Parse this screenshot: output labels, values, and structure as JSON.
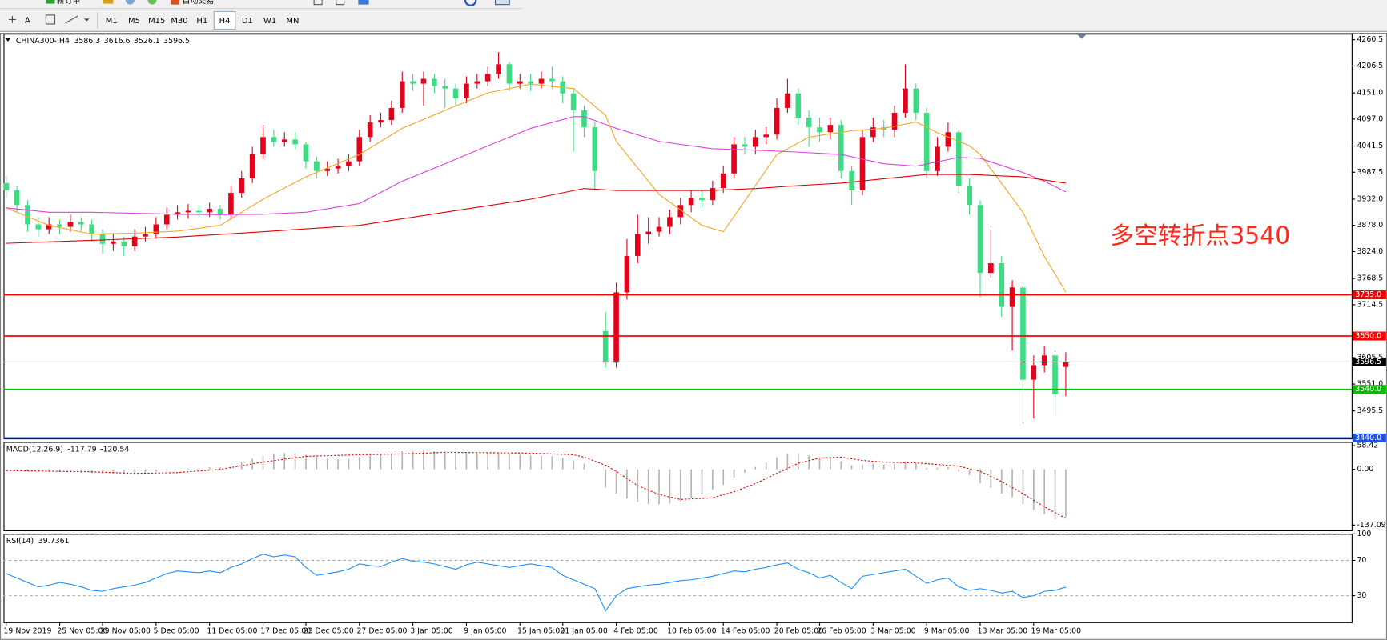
{
  "toolbar": {
    "buttons": [
      "新订单",
      "自动交易"
    ],
    "tools": [
      "A"
    ],
    "timeframes": [
      "M1",
      "M5",
      "M15",
      "M30",
      "H1",
      "H4",
      "D1",
      "W1",
      "MN"
    ],
    "active_index": 5
  },
  "chart_data": [
    {
      "type": "candlestick",
      "title": "CHINA300-,H4",
      "header_values": [
        3586.3,
        3616.6,
        3526.1,
        3596.5
      ],
      "annotation": "多空转折点3540",
      "annotation_color": "#ff2a1a",
      "up_color": "#e5001b",
      "down_color": "#3ddc84",
      "categories": [
        "19 Nov 2019",
        null,
        null,
        null,
        null,
        "25 Nov 05:00",
        null,
        null,
        null,
        "29 Nov 05:00",
        null,
        null,
        null,
        null,
        "5 Dec 05:00",
        null,
        null,
        null,
        null,
        "11 Dec 05:00",
        null,
        null,
        null,
        null,
        "17 Dec 05:00",
        null,
        null,
        null,
        "23 Dec 05:00",
        null,
        null,
        null,
        null,
        "27 Dec 05:00",
        null,
        null,
        null,
        null,
        "3 Jan 05:00",
        null,
        null,
        null,
        null,
        "9 Jan 05:00",
        null,
        null,
        null,
        null,
        "15 Jan 05:00",
        null,
        null,
        null,
        "21 Jan 05:00",
        null,
        null,
        null,
        null,
        "4 Feb 05:00",
        null,
        null,
        null,
        null,
        "10 Feb 05:00",
        null,
        null,
        null,
        null,
        "14 Feb 05:00",
        null,
        null,
        null,
        null,
        "20 Feb 05:00",
        null,
        null,
        null,
        "26 Feb 05:00",
        null,
        null,
        null,
        null,
        "3 Mar 05:00",
        null,
        null,
        null,
        null,
        "9 Mar 05:00",
        null,
        null,
        null,
        null,
        "13 Mar 05:00",
        null,
        null,
        null,
        null,
        "19 Mar 05:00",
        null,
        null,
        null
      ],
      "open": [
        3965,
        3950,
        3920,
        3880,
        3870,
        3880,
        3875,
        3885,
        3880,
        3860,
        3840,
        3845,
        3835,
        3855,
        3860,
        3880,
        3900,
        3905,
        3908,
        3905,
        3912,
        3900,
        3945,
        3975,
        4025,
        4060,
        4050,
        4055,
        4045,
        4010,
        3990,
        3995,
        4000,
        4010,
        4060,
        4090,
        4095,
        4120,
        4175,
        4170,
        4180,
        4165,
        4160,
        4140,
        4170,
        4175,
        4190,
        4210,
        4170,
        4175,
        4170,
        4180,
        4175,
        4150,
        4115,
        4080,
        3660,
        3595,
        3740,
        3815,
        3860,
        3865,
        3875,
        3895,
        3920,
        3935,
        3930,
        3955,
        3985,
        4045,
        4040,
        4060,
        4065,
        4120,
        4150,
        4100,
        4080,
        4070,
        4085,
        3990,
        3950,
        4060,
        4080,
        4075,
        4110,
        4160,
        4110,
        3990,
        4040,
        4070,
        3960,
        3920,
        3780,
        3800,
        3710,
        3750,
        3560,
        3590,
        3610,
        3586.3
      ],
      "high": [
        3980,
        3960,
        3930,
        3895,
        3895,
        3890,
        3900,
        3895,
        3890,
        3870,
        3860,
        3855,
        3870,
        3875,
        3895,
        3915,
        3920,
        3922,
        3920,
        3925,
        3920,
        3960,
        3990,
        4040,
        4085,
        4075,
        4070,
        4070,
        4050,
        4020,
        4010,
        4015,
        4025,
        4075,
        4105,
        4110,
        4135,
        4195,
        4190,
        4195,
        4190,
        4180,
        4170,
        4185,
        4190,
        4205,
        4235,
        4215,
        4190,
        4190,
        4195,
        4205,
        4185,
        4160,
        4125,
        4090,
        3700,
        3760,
        3850,
        3900,
        3895,
        3895,
        3910,
        3935,
        3950,
        3950,
        3970,
        4000,
        4060,
        4060,
        4075,
        4080,
        4140,
        4180,
        4160,
        4115,
        4100,
        4100,
        4095,
        4000,
        4075,
        4100,
        4095,
        4125,
        4210,
        4170,
        4120,
        4060,
        4090,
        4075,
        3975,
        3930,
        3870,
        3815,
        3765,
        3760,
        3610,
        3630,
        3620,
        3616.6
      ],
      "low": [
        3935,
        3905,
        3865,
        3855,
        3860,
        3860,
        3865,
        3865,
        3845,
        3820,
        3825,
        3815,
        3825,
        3845,
        3850,
        3870,
        3890,
        3892,
        3895,
        3895,
        3890,
        3890,
        3935,
        3965,
        4015,
        4040,
        4040,
        4035,
        3995,
        3975,
        3980,
        3985,
        3990,
        4000,
        4050,
        4080,
        4085,
        4110,
        4155,
        4125,
        4150,
        4120,
        4125,
        4130,
        4160,
        4165,
        4180,
        4155,
        4160,
        4155,
        4160,
        4160,
        4130,
        4030,
        4060,
        3950,
        3585,
        3585,
        3725,
        3800,
        3840,
        3855,
        3860,
        3880,
        3905,
        3915,
        3920,
        3945,
        3975,
        4025,
        4025,
        4045,
        4055,
        4110,
        4085,
        4040,
        4050,
        4055,
        3975,
        3920,
        3940,
        4050,
        4060,
        4060,
        4100,
        4095,
        3975,
        3980,
        4030,
        3945,
        3900,
        3730,
        3770,
        3690,
        3620,
        3470,
        3480,
        3575,
        3485,
        3526.1
      ],
      "close": [
        3950,
        3920,
        3880,
        3870,
        3880,
        3875,
        3885,
        3880,
        3860,
        3840,
        3845,
        3835,
        3855,
        3860,
        3880,
        3900,
        3905,
        3908,
        3905,
        3912,
        3900,
        3945,
        3975,
        4025,
        4060,
        4050,
        4055,
        4045,
        4010,
        3990,
        3995,
        4000,
        4010,
        4060,
        4090,
        4095,
        4120,
        4175,
        4170,
        4180,
        4165,
        4160,
        4140,
        4170,
        4175,
        4190,
        4210,
        4170,
        4175,
        4170,
        4180,
        4175,
        4150,
        4115,
        4080,
        3990,
        3595,
        3740,
        3815,
        3860,
        3865,
        3875,
        3895,
        3920,
        3935,
        3930,
        3955,
        3985,
        4045,
        4040,
        4060,
        4065,
        4120,
        4150,
        4100,
        4080,
        4070,
        4085,
        3990,
        3950,
        4060,
        4080,
        4075,
        4110,
        4160,
        4110,
        3990,
        4040,
        4070,
        3960,
        3920,
        3780,
        3800,
        3710,
        3750,
        3560,
        3590,
        3610,
        3530,
        3596.5
      ],
      "overlays": [
        {
          "color": "#f5a623",
          "x": [
            0,
            4,
            8,
            12,
            16,
            20,
            24,
            28,
            33,
            37,
            41,
            45,
            49,
            53,
            56,
            57,
            61,
            65,
            67,
            70,
            72,
            75,
            79,
            82,
            85,
            87,
            90,
            91,
            95,
            97,
            99
          ],
          "values": [
            3914,
            3878,
            3860,
            3862,
            3866,
            3878,
            3932,
            3978,
            4024,
            4078,
            4115,
            4151,
            4169,
            4160,
            4105,
            4051,
            3942,
            3878,
            3865,
            3960,
            4024,
            4060,
            4073,
            4078,
            4091,
            4069,
            4042,
            4024,
            3905,
            3814,
            3741
          ]
        },
        {
          "color": "#e040e0",
          "x": [
            0,
            4,
            8,
            12,
            16,
            20,
            24,
            28,
            33,
            37,
            41,
            45,
            49,
            53,
            54,
            57,
            61,
            66,
            70,
            74,
            78,
            82,
            85,
            89,
            91,
            95,
            97,
            99
          ],
          "values": [
            3914,
            3905,
            3905,
            3903,
            3901,
            3900,
            3901,
            3905,
            3923,
            3969,
            4005,
            4042,
            4078,
            4102,
            4102,
            4078,
            4051,
            4036,
            4033,
            4029,
            4024,
            4005,
            4000,
            4018,
            4016,
            3987,
            3969,
            3947
          ]
        },
        {
          "color": "#e00000",
          "x": [
            0,
            8,
            16,
            24,
            33,
            41,
            49,
            54,
            57,
            66,
            70,
            74,
            78,
            82,
            86,
            90,
            95,
            99
          ],
          "values": [
            3841,
            3847,
            3854,
            3865,
            3878,
            3905,
            3932,
            3954,
            3950,
            3950,
            3954,
            3960,
            3965,
            3974,
            3983,
            3983,
            3978,
            3965
          ]
        }
      ],
      "levels": [
        {
          "value": 3735,
          "label": "3735.0",
          "color": "#ff0000"
        },
        {
          "value": 3650,
          "label": "3650.0",
          "color": "#ff0000"
        },
        {
          "value": 3596.5,
          "color": "#9a9a9a",
          "label_color": "#000000"
        },
        {
          "value": 3540,
          "label": "3540.0",
          "color": "#00c000"
        },
        {
          "value": 3440,
          "label": "3440.0",
          "color": "#2050e0"
        }
      ],
      "ylim": [
        3439,
        4273
      ],
      "yticks": [
        4260.5,
        4206.5,
        {
          "value": 4151,
          "label": "4151.0"
        },
        {
          "value": 4097,
          "label": "4097.0"
        },
        4041.5,
        3987.5,
        {
          "value": 3932,
          "label": "3932.0"
        },
        {
          "value": 3878,
          "label": "3878.0"
        },
        {
          "value": 3824,
          "label": "3824.0"
        },
        3768.5,
        3714.5,
        3605.5,
        {
          "value": 3551,
          "label": "3551.0"
        },
        3495.5
      ]
    },
    {
      "type": "macd",
      "title": "MACD(12,26,9)",
      "header_values": [
        -117.79,
        -120.54
      ],
      "histogram_color": "#b4b4b4",
      "signal_color": "#e00000",
      "histogram": [
        -3,
        -4,
        -5,
        -5,
        -6,
        -6,
        -7,
        -8,
        -9,
        -10,
        -10,
        -11,
        -10,
        -8,
        -6,
        -3,
        0,
        2,
        3,
        5,
        5,
        10,
        18,
        26,
        34,
        38,
        40,
        40,
        36,
        30,
        26,
        25,
        26,
        30,
        34,
        36,
        40,
        44,
        45,
        46,
        44,
        42,
        40,
        40,
        40,
        41,
        42,
        38,
        36,
        34,
        33,
        32,
        28,
        22,
        14,
        0,
        -45,
        -60,
        -72,
        -80,
        -85,
        -86,
        -84,
        -78,
        -70,
        -62,
        -50,
        -38,
        -20,
        -8,
        6,
        18,
        30,
        38,
        38,
        34,
        30,
        30,
        20,
        10,
        12,
        14,
        12,
        14,
        20,
        16,
        4,
        4,
        6,
        -6,
        -14,
        -34,
        -45,
        -60,
        -68,
        -86,
        -100,
        -110,
        -122,
        -117.79
      ],
      "signal": {
        "x": [
          0,
          8,
          12,
          16,
          20,
          24,
          28,
          33,
          37,
          41,
          45,
          49,
          53,
          54,
          56,
          57,
          59,
          61,
          63,
          66,
          68,
          70,
          72,
          74,
          76,
          78,
          80,
          82,
          85,
          87,
          89,
          91,
          93,
          95,
          97,
          99
        ],
        "values": [
          -3,
          -6,
          -10,
          -8,
          0,
          18,
          32,
          36,
          38,
          42,
          41,
          40,
          36,
          30,
          10,
          -5,
          -40,
          -62,
          -74,
          -70,
          -55,
          -35,
          -10,
          15,
          28,
          30,
          22,
          18,
          16,
          12,
          8,
          -5,
          -30,
          -60,
          -92,
          -120.54
        ]
      },
      "ylim": [
        -150,
        67.5
      ],
      "yticks": [
        58.42,
        {
          "value": 0,
          "label": "0.00"
        },
        -137.09
      ]
    },
    {
      "type": "line",
      "title": "RSI(14)",
      "header_values": [
        39.7361
      ],
      "color": "#1e8fff",
      "grid": "dashed",
      "values": [
        55,
        50,
        45,
        40,
        42,
        45,
        43,
        40,
        36,
        35,
        38,
        40,
        42,
        45,
        50,
        55,
        58,
        57,
        56,
        58,
        56,
        62,
        66,
        72,
        77,
        74,
        76,
        74,
        62,
        53,
        55,
        57,
        60,
        66,
        64,
        63,
        68,
        72,
        69,
        68,
        66,
        63,
        60,
        65,
        68,
        66,
        64,
        62,
        64,
        66,
        64,
        62,
        53,
        48,
        43,
        38,
        13,
        30,
        38,
        40,
        42,
        43,
        45,
        47,
        48,
        50,
        52,
        55,
        58,
        57,
        60,
        62,
        65,
        67,
        60,
        56,
        50,
        53,
        45,
        38,
        52,
        54,
        56,
        58,
        60,
        52,
        44,
        48,
        50,
        40,
        36,
        38,
        36,
        33,
        35,
        28,
        30,
        35,
        36,
        39.7361
      ],
      "ylim": [
        0,
        100
      ],
      "yticks": [
        100,
        70,
        30
      ]
    }
  ]
}
